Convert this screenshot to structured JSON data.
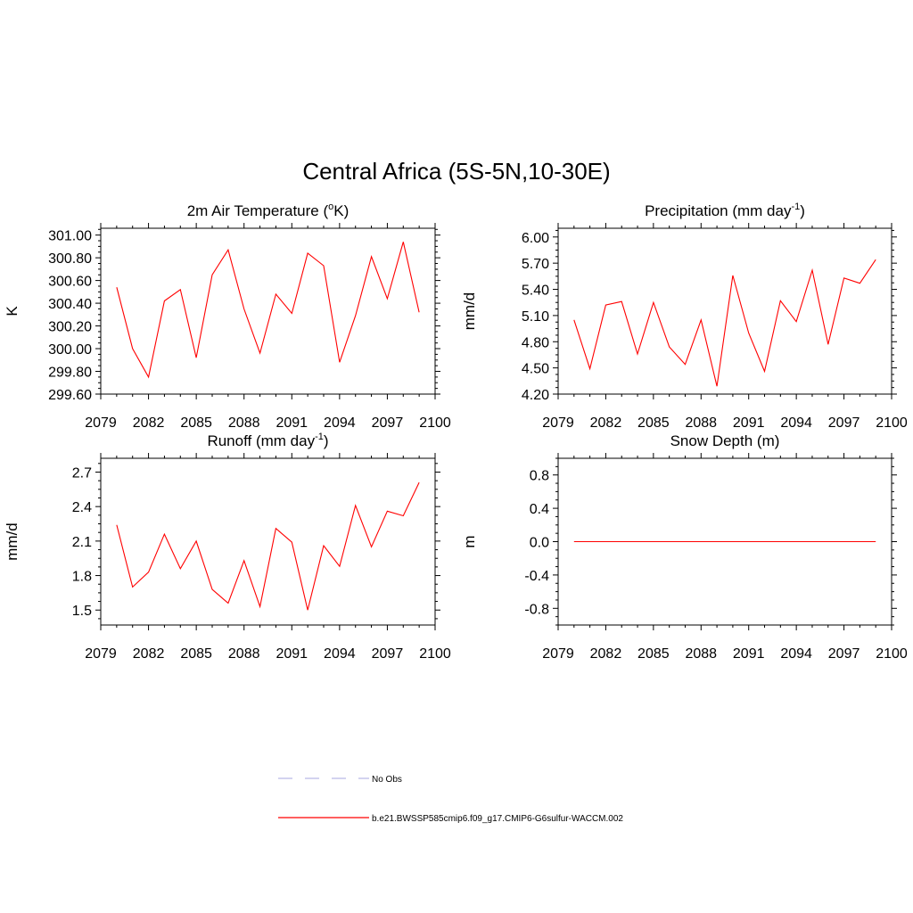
{
  "figure_title": "Central Africa (5S-5N,10-30E)",
  "chart_data": [
    {
      "type": "line",
      "title": "2m Air Temperature (",
      "title_sup": "o",
      "title_after": "K)",
      "ylabel": "K",
      "xlim": [
        2079,
        2100
      ],
      "xticks": [
        2079,
        2082,
        2085,
        2088,
        2091,
        2094,
        2097,
        2100
      ],
      "ylim": [
        299.6,
        301.06
      ],
      "yticks": [
        "299.60",
        "299.80",
        "300.00",
        "300.20",
        "300.40",
        "300.60",
        "300.80",
        "301.00"
      ],
      "series": [
        {
          "name": "b.e21.BWSSP585cmip6.f09_g17.CMIP6-G6sulfur-WACCM.002",
          "color": "#ff0000",
          "x": [
            2080,
            2081,
            2082,
            2083,
            2084,
            2085,
            2086,
            2087,
            2088,
            2089,
            2090,
            2091,
            2092,
            2093,
            2094,
            2095,
            2096,
            2097,
            2098,
            2099
          ],
          "values": [
            300.54,
            300.0,
            299.75,
            300.42,
            300.52,
            299.92,
            300.65,
            300.87,
            300.35,
            299.96,
            300.48,
            300.31,
            300.84,
            300.73,
            299.88,
            300.29,
            300.81,
            300.44,
            300.94,
            300.32
          ]
        }
      ]
    },
    {
      "type": "line",
      "title": "Precipitation (mm day",
      "title_sup": "-1",
      "title_after": ")",
      "ylabel": "mm/d",
      "xlim": [
        2079,
        2100
      ],
      "xticks": [
        2079,
        2082,
        2085,
        2088,
        2091,
        2094,
        2097,
        2100
      ],
      "ylim": [
        4.2,
        6.1
      ],
      "yticks": [
        "4.20",
        "4.50",
        "4.80",
        "5.10",
        "5.40",
        "5.70",
        "6.00"
      ],
      "series": [
        {
          "name": "b.e21.BWSSP585cmip6.f09_g17.CMIP6-G6sulfur-WACCM.002",
          "color": "#ff0000",
          "x": [
            2080,
            2081,
            2082,
            2083,
            2084,
            2085,
            2086,
            2087,
            2088,
            2089,
            2090,
            2091,
            2092,
            2093,
            2094,
            2095,
            2096,
            2097,
            2098,
            2099
          ],
          "values": [
            5.05,
            4.49,
            5.22,
            5.26,
            4.66,
            5.25,
            4.74,
            4.54,
            5.05,
            4.29,
            5.56,
            4.9,
            4.46,
            5.27,
            5.03,
            5.62,
            4.77,
            5.53,
            5.47,
            5.74
          ]
        }
      ]
    },
    {
      "type": "line",
      "title": "Runoff (mm day",
      "title_sup": "-1",
      "title_after": ")",
      "ylabel": "mm/d",
      "xlim": [
        2079,
        2100
      ],
      "xticks": [
        2079,
        2082,
        2085,
        2088,
        2091,
        2094,
        2097,
        2100
      ],
      "ylim": [
        1.37,
        2.82
      ],
      "yticks": [
        "1.5",
        "1.8",
        "2.1",
        "2.4",
        "2.7"
      ],
      "series": [
        {
          "name": "b.e21.BWSSP585cmip6.f09_g17.CMIP6-G6sulfur-WACCM.002",
          "color": "#ff0000",
          "x": [
            2080,
            2081,
            2082,
            2083,
            2084,
            2085,
            2086,
            2087,
            2088,
            2089,
            2090,
            2091,
            2092,
            2093,
            2094,
            2095,
            2096,
            2097,
            2098,
            2099
          ],
          "values": [
            2.24,
            1.7,
            1.83,
            2.16,
            1.86,
            2.1,
            1.68,
            1.56,
            1.93,
            1.53,
            2.21,
            2.09,
            1.5,
            2.06,
            1.88,
            2.41,
            2.05,
            2.36,
            2.32,
            2.61
          ]
        }
      ]
    },
    {
      "type": "line",
      "title": "Snow Depth (m)",
      "title_sup": "",
      "title_after": "",
      "ylabel": "m",
      "xlim": [
        2079,
        2100
      ],
      "xticks": [
        2079,
        2082,
        2085,
        2088,
        2091,
        2094,
        2097,
        2100
      ],
      "ylim": [
        -1.0,
        1.0
      ],
      "yticks": [
        "-0.8",
        "-0.4",
        "0.0",
        "0.4",
        "0.8"
      ],
      "series": [
        {
          "name": "b.e21.BWSSP585cmip6.f09_g17.CMIP6-G6sulfur-WACCM.002",
          "color": "#ff0000",
          "x": [
            2080,
            2081,
            2082,
            2083,
            2084,
            2085,
            2086,
            2087,
            2088,
            2089,
            2090,
            2091,
            2092,
            2093,
            2094,
            2095,
            2096,
            2097,
            2098,
            2099
          ],
          "values": [
            0,
            0,
            0,
            0,
            0,
            0,
            0,
            0,
            0,
            0,
            0,
            0,
            0,
            0,
            0,
            0,
            0,
            0,
            0,
            0
          ]
        }
      ]
    }
  ],
  "legend": {
    "entries": [
      {
        "label": "No Obs",
        "color": "#b9b9e8",
        "style": "dashed"
      },
      {
        "label": "b.e21.BWSSP585cmip6.f09_g17.CMIP6-G6sulfur-WACCM.002",
        "color": "#ff0000",
        "style": "solid"
      }
    ]
  }
}
